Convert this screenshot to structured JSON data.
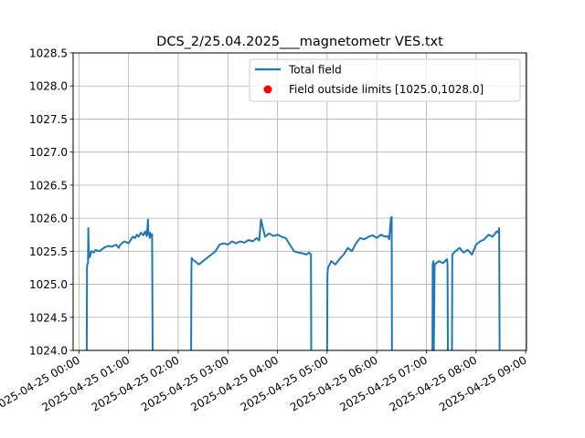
{
  "chart_data": {
    "type": "line",
    "title": "DCS_2/25.04.2025___magnetometr VES.txt",
    "xlabel": "",
    "ylabel": "",
    "xlim": [
      "2025-04-24 23:53",
      "2025-04-25 09:01"
    ],
    "ylim": [
      1024.0,
      1028.5
    ],
    "grid": true,
    "legend_position": "top-right",
    "y_ticks": [
      "1024.0",
      "1024.5",
      "1025.0",
      "1025.5",
      "1026.0",
      "1026.5",
      "1027.0",
      "1027.5",
      "1028.0",
      "1028.5"
    ],
    "x_ticks": [
      {
        "t": "2025-04-25 00:00",
        "label": "2025-04-25 00:00"
      },
      {
        "t": "2025-04-25 01:00",
        "label": "2025-04-25 01:00"
      },
      {
        "t": "2025-04-25 02:00",
        "label": "2025-04-25 02:00"
      },
      {
        "t": "2025-04-25 03:00",
        "label": "2025-04-25 03:00"
      },
      {
        "t": "2025-04-25 04:00",
        "label": "2025-04-25 04:00"
      },
      {
        "t": "2025-04-25 05:00",
        "label": "2025-04-25 05:00"
      },
      {
        "t": "2025-04-25 06:00",
        "label": "2025-04-25 06:00"
      },
      {
        "t": "2025-04-25 07:00",
        "label": "2025-04-25 07:00"
      },
      {
        "t": "2025-04-25 08:00",
        "label": "2025-04-25 08:00"
      },
      {
        "t": "2025-04-25 09:00",
        "label": "2025-04-25 09:00"
      }
    ],
    "series": [
      {
        "name": "Total field",
        "kind": "line",
        "color": "#1f77b4",
        "segments": [
          {
            "x": [
              "00:09:30",
              "00:09:50",
              "00:10:00",
              "00:11:00",
              "00:11:20",
              "00:12:00",
              "00:12:40",
              "00:13:30",
              "00:15:00",
              "00:18:00",
              "00:20:00",
              "00:25:00",
              "00:30:00",
              "00:35:00",
              "00:40:00",
              "00:45:00",
              "00:48:00",
              "00:50:00",
              "00:55:00",
              "01:00:00",
              "01:03:00",
              "01:05:00",
              "01:08:00",
              "01:10:00",
              "01:12:00",
              "01:15:00",
              "01:18:00",
              "01:20:00",
              "01:22:00",
              "01:23:30",
              "01:24:00",
              "01:25:00",
              "01:25:40",
              "01:26:00",
              "01:27:00",
              "01:28:30",
              "01:29:10"
            ],
            "y": [
              1024.0,
              1025.25,
              1025.3,
              1025.32,
              1025.85,
              1025.4,
              1025.48,
              1025.42,
              1025.5,
              1025.48,
              1025.52,
              1025.5,
              1025.55,
              1025.58,
              1025.57,
              1025.6,
              1025.55,
              1025.6,
              1025.65,
              1025.62,
              1025.68,
              1025.72,
              1025.7,
              1025.75,
              1025.72,
              1025.78,
              1025.74,
              1025.8,
              1025.73,
              1025.98,
              1025.76,
              1025.75,
              1025.7,
              1025.78,
              1025.72,
              1025.76,
              1024.0
            ]
          },
          {
            "x": [
              "02:15:40",
              "02:16:00",
              "02:16:20",
              "02:17:00",
              "02:20:00",
              "02:25:00",
              "02:30:00",
              "02:35:00",
              "02:40:00",
              "02:45:00",
              "02:50:00",
              "02:55:00",
              "03:00:00",
              "03:05:00",
              "03:10:00",
              "03:15:00",
              "03:20:00",
              "03:25:00",
              "03:30:00",
              "03:35:00",
              "03:38:00",
              "03:40:00",
              "03:45:00",
              "03:50:00",
              "03:55:00",
              "04:00:00",
              "04:05:00",
              "04:10:00",
              "04:15:00",
              "04:20:00",
              "04:25:00",
              "04:30:00",
              "04:35:00",
              "04:38:00",
              "04:40:30",
              "04:40:50"
            ],
            "y": [
              1024.0,
              1025.2,
              1025.4,
              1025.38,
              1025.35,
              1025.3,
              1025.35,
              1025.4,
              1025.45,
              1025.5,
              1025.6,
              1025.62,
              1025.6,
              1025.65,
              1025.62,
              1025.65,
              1025.63,
              1025.67,
              1025.65,
              1025.7,
              1025.66,
              1025.98,
              1025.72,
              1025.77,
              1025.73,
              1025.75,
              1025.72,
              1025.7,
              1025.6,
              1025.5,
              1025.48,
              1025.47,
              1025.45,
              1025.48,
              1025.45,
              1024.0
            ]
          },
          {
            "x": [
              "05:00:00",
              "05:00:20",
              "05:01:00",
              "05:05:00",
              "05:10:00",
              "05:15:00",
              "05:20:00",
              "05:25:00",
              "05:30:00",
              "05:35:00",
              "05:40:00",
              "05:45:00",
              "05:50:00",
              "05:55:00",
              "06:00:00",
              "06:05:00",
              "06:10:00",
              "06:13:00",
              "06:15:00",
              "06:17:00",
              "06:18:00",
              "06:18:20"
            ],
            "y": [
              1024.0,
              1025.15,
              1025.25,
              1025.35,
              1025.3,
              1025.38,
              1025.45,
              1025.55,
              1025.5,
              1025.62,
              1025.7,
              1025.68,
              1025.72,
              1025.74,
              1025.7,
              1025.75,
              1025.72,
              1025.73,
              1025.68,
              1025.99,
              1026.02,
              1024.0
            ]
          },
          {
            "x": [
              "07:07:20",
              "07:07:40",
              "07:08:30",
              "07:09:00",
              "07:10:00",
              "07:15:00",
              "07:20:00",
              "07:25:00",
              "07:25:30",
              "07:26:00"
            ],
            "y": [
              1024.0,
              1025.3,
              1025.35,
              1024.0,
              1025.3,
              1025.35,
              1025.32,
              1025.38,
              1025.3,
              1024.0
            ]
          },
          {
            "x": [
              "07:31:00",
              "07:31:20",
              "07:35:00",
              "07:40:00",
              "07:45:00",
              "07:50:00",
              "07:55:00",
              "08:00:00",
              "08:05:00",
              "08:10:00",
              "08:15:00",
              "08:20:00",
              "08:25:00",
              "08:27:00",
              "08:28:00",
              "08:28:30"
            ],
            "y": [
              1024.0,
              1025.45,
              1025.5,
              1025.55,
              1025.48,
              1025.52,
              1025.45,
              1025.6,
              1025.65,
              1025.68,
              1025.75,
              1025.72,
              1025.8,
              1025.78,
              1025.85,
              1024.0
            ]
          }
        ]
      },
      {
        "name": "Field outside limits [1025.0,1028.0]",
        "kind": "scatter",
        "color": "#ff0000",
        "x": [],
        "y": []
      }
    ]
  }
}
